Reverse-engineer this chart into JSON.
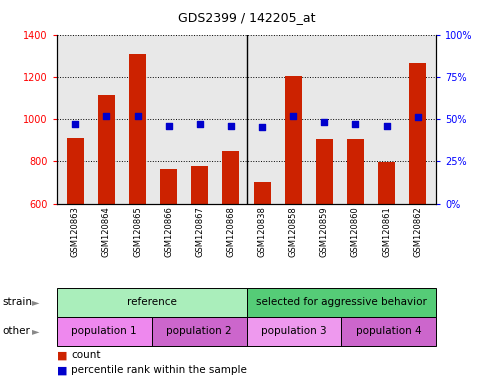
{
  "title": "GDS2399 / 142205_at",
  "samples": [
    "GSM120863",
    "GSM120864",
    "GSM120865",
    "GSM120866",
    "GSM120867",
    "GSM120868",
    "GSM120838",
    "GSM120858",
    "GSM120859",
    "GSM120860",
    "GSM120861",
    "GSM120862"
  ],
  "counts": [
    910,
    1115,
    1310,
    765,
    778,
    848,
    700,
    1205,
    905,
    905,
    795,
    1265
  ],
  "percentiles": [
    47,
    52,
    52,
    46,
    47,
    46,
    45,
    52,
    48,
    47,
    46,
    51
  ],
  "ylim_left": [
    600,
    1400
  ],
  "ylim_right": [
    0,
    100
  ],
  "yticks_left": [
    600,
    800,
    1000,
    1200,
    1400
  ],
  "yticks_right": [
    0,
    25,
    50,
    75,
    100
  ],
  "bar_color": "#cc2200",
  "dot_color": "#0000cc",
  "plot_bg_color": "#e8e8e8",
  "strain_groups": [
    {
      "label": "reference",
      "start": 0,
      "end": 6,
      "color": "#aaeebb"
    },
    {
      "label": "selected for aggressive behavior",
      "start": 6,
      "end": 12,
      "color": "#55cc77"
    }
  ],
  "other_groups": [
    {
      "label": "population 1",
      "start": 0,
      "end": 3,
      "color": "#ee88ee"
    },
    {
      "label": "population 2",
      "start": 3,
      "end": 6,
      "color": "#cc66cc"
    },
    {
      "label": "population 3",
      "start": 6,
      "end": 9,
      "color": "#ee99ee"
    },
    {
      "label": "population 4",
      "start": 9,
      "end": 12,
      "color": "#cc66cc"
    }
  ],
  "strain_label": "strain",
  "other_label": "other",
  "legend_count_label": "count",
  "legend_pct_label": "percentile rank within the sample"
}
